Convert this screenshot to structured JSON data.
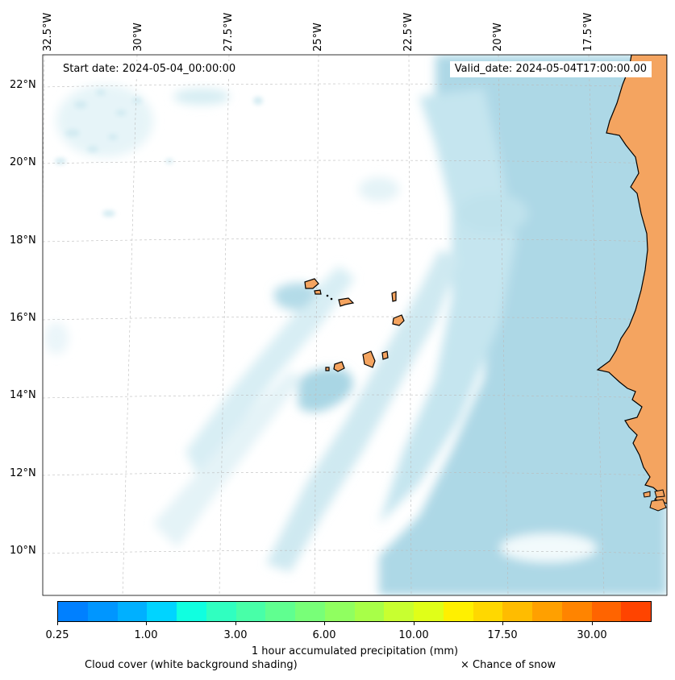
{
  "map": {
    "longitude_labels": [
      "32.5°W",
      "30°W",
      "27.5°W",
      "25°W",
      "22.5°W",
      "20°W",
      "17.5°W"
    ],
    "latitude_labels": [
      "22°N",
      "20°N",
      "18°N",
      "16°N",
      "14°N",
      "12°N",
      "10°N"
    ],
    "start_date": "Start date: 2024-05-04_00:00:00",
    "valid_date": "Valid_date: 2024-05-04T17:00:00.00",
    "colors": {
      "ocean_cloud_free": "#ffffff",
      "cloud_shading": "#add8e6",
      "land": "#f4a460",
      "coastline": "#000000",
      "grid": "#bbbbbb"
    }
  },
  "colorbar": {
    "title": "1 hour accumulated precipitation (mm)",
    "tick_labels": [
      "0.25",
      "1.00",
      "3.00",
      "6.00",
      "10.00",
      "17.50",
      "30.00"
    ],
    "colors": [
      "#0080ff",
      "#0096ff",
      "#00b0ff",
      "#00d4ff",
      "#10ffe0",
      "#30ffc0",
      "#48ffa8",
      "#60ff90",
      "#78ff78",
      "#90ff60",
      "#a8ff48",
      "#c8ff30",
      "#e0ff18",
      "#fff000",
      "#ffd800",
      "#ffbc00",
      "#ffa000",
      "#ff8400",
      "#ff6400",
      "#ff4400"
    ]
  },
  "footer": {
    "cloud_cover_label": "Cloud cover (white background shading)",
    "snow_label": "× Chance of snow"
  }
}
